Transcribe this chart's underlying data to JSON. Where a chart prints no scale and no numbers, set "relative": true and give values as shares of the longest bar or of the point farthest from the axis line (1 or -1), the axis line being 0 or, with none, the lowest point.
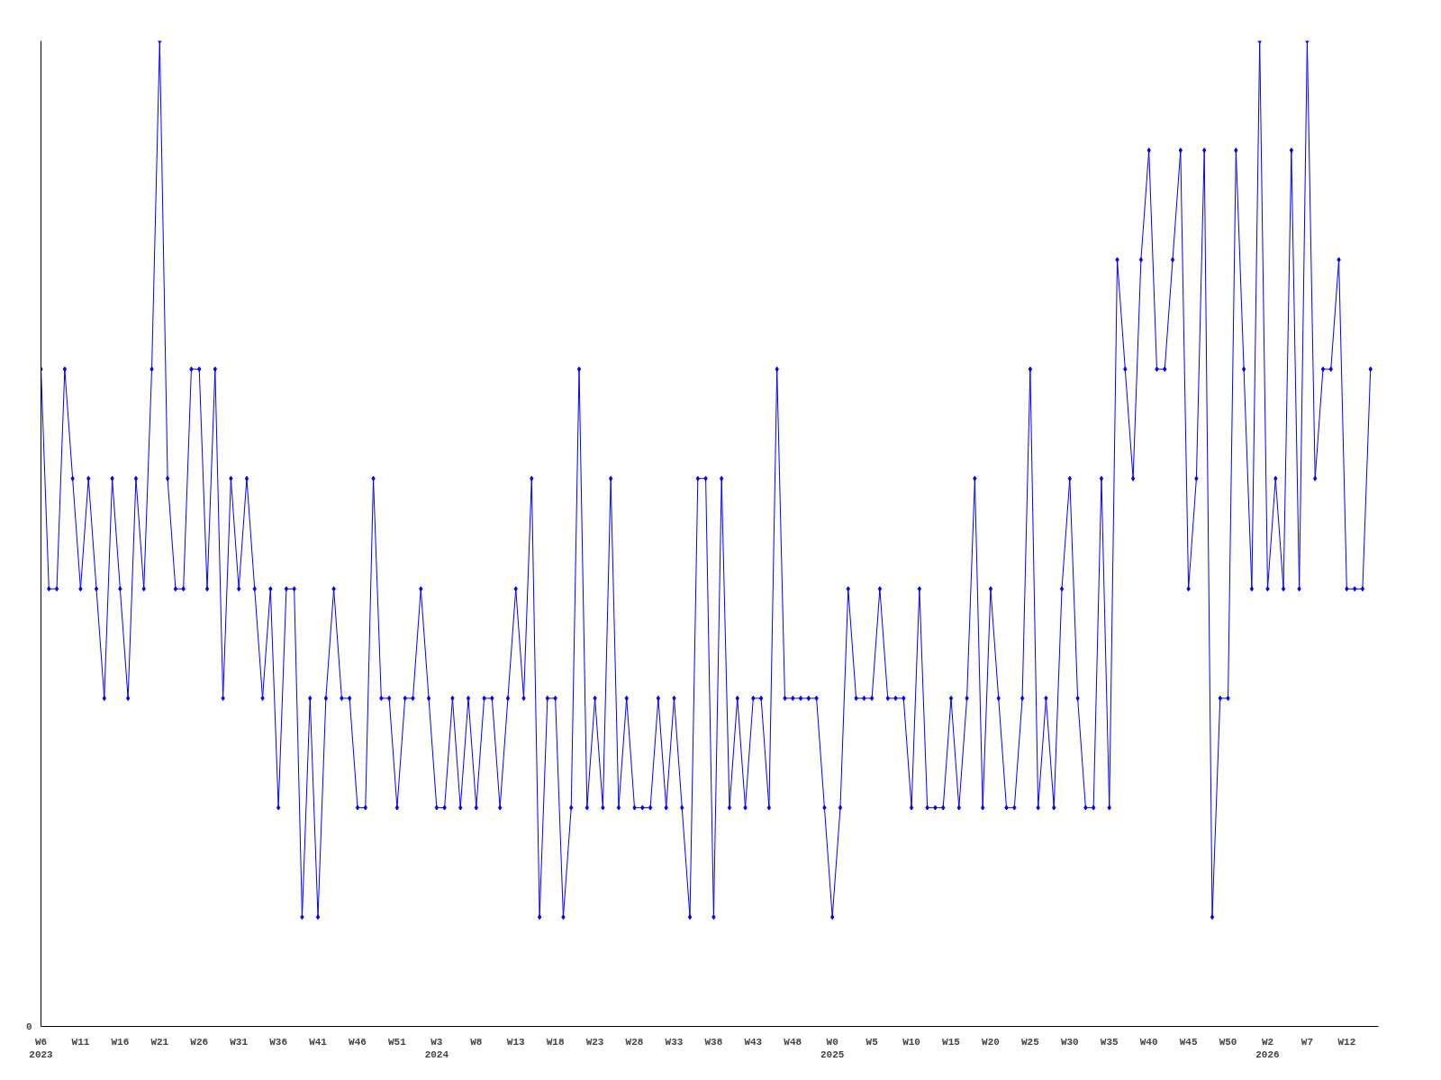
{
  "chart_data": {
    "type": "line",
    "relative": true,
    "marker": "diamond",
    "line_style": "solid",
    "categories": [
      "W6\n2023",
      null,
      null,
      null,
      null,
      "W11",
      null,
      null,
      null,
      null,
      "W16",
      null,
      null,
      null,
      null,
      "W21",
      null,
      null,
      null,
      null,
      "W26",
      null,
      null,
      null,
      null,
      "W31",
      null,
      null,
      null,
      null,
      "W36",
      null,
      null,
      null,
      null,
      "W41",
      null,
      null,
      null,
      null,
      "W46",
      null,
      null,
      null,
      null,
      "W51",
      null,
      null,
      null,
      null,
      "W3\n2024",
      null,
      null,
      null,
      null,
      "W8",
      null,
      null,
      null,
      null,
      "W13",
      null,
      null,
      null,
      null,
      "W18",
      null,
      null,
      null,
      null,
      "W23",
      null,
      null,
      null,
      null,
      "W28",
      null,
      null,
      null,
      null,
      "W33",
      null,
      null,
      null,
      null,
      "W38",
      null,
      null,
      null,
      null,
      "W43",
      null,
      null,
      null,
      null,
      "W48",
      null,
      null,
      null,
      null,
      "W0\n2025",
      null,
      null,
      null,
      null,
      "W5",
      null,
      null,
      null,
      null,
      "W10",
      null,
      null,
      null,
      null,
      "W15",
      null,
      null,
      null,
      null,
      "W20",
      null,
      null,
      null,
      null,
      "W25",
      null,
      null,
      null,
      null,
      "W30",
      null,
      null,
      null,
      null,
      "W35",
      null,
      null,
      null,
      null,
      "W40",
      null,
      null,
      null,
      null,
      "W45",
      null,
      null,
      null,
      null,
      "W50",
      null,
      null,
      null,
      null,
      "W2\n2026",
      null,
      null,
      null,
      null,
      "W7",
      null,
      null,
      null,
      null,
      "W12",
      null,
      null,
      null
    ],
    "annotations": [
      "0"
    ],
    "series": [
      {
        "color": "#0000ff",
        "values": [
          0.667,
          0.444,
          0.444,
          0.667,
          0.556,
          0.444,
          0.556,
          0.444,
          0.333,
          0.556,
          0.444,
          0.333,
          0.556,
          0.444,
          0.667,
          1,
          0.556,
          0.444,
          0.444,
          0.667,
          0.667,
          0.444,
          0.667,
          0.333,
          0.556,
          0.444,
          0.556,
          0.444,
          0.333,
          0.444,
          0.222,
          0.444,
          0.444,
          0.111,
          0.333,
          0.111,
          0.333,
          0.444,
          0.333,
          0.333,
          0.222,
          0.222,
          0.556,
          0.333,
          0.333,
          0.222,
          0.333,
          0.333,
          0.444,
          0.333,
          0.222,
          0.222,
          0.333,
          0.222,
          0.333,
          0.222,
          0.333,
          0.333,
          0.222,
          0.333,
          0.444,
          0.333,
          0.556,
          0.111,
          0.333,
          0.333,
          0.111,
          0.222,
          0.667,
          0.222,
          0.333,
          0.222,
          0.556,
          0.222,
          0.333,
          0.222,
          0.222,
          0.222,
          0.333,
          0.222,
          0.333,
          0.222,
          0.111,
          0.556,
          0.556,
          0.111,
          0.556,
          0.222,
          0.333,
          0.222,
          0.333,
          0.333,
          0.222,
          0.667,
          0.333,
          0.333,
          0.333,
          0.333,
          0.333,
          0.222,
          0.111,
          0.222,
          0.444,
          0.333,
          0.333,
          0.333,
          0.444,
          0.333,
          0.333,
          0.333,
          0.222,
          0.444,
          0.222,
          0.222,
          0.222,
          0.333,
          0.222,
          0.333,
          0.556,
          0.222,
          0.444,
          0.333,
          0.222,
          0.222,
          0.333,
          0.667,
          0.222,
          0.333,
          0.222,
          0.444,
          0.556,
          0.333,
          0.222,
          0.222,
          0.556,
          0.222,
          0.778,
          0.667,
          0.556,
          0.778,
          0.889,
          0.667,
          0.667,
          0.778,
          0.889,
          0.444,
          0.556,
          0.889,
          0.111,
          0.333,
          0.333,
          0.889,
          0.667,
          0.444,
          1,
          0.444,
          0.556,
          0.444,
          0.889,
          0.444,
          1,
          0.556,
          0.667,
          0.667,
          0.778,
          0.444,
          0.444,
          0.444,
          0.667
        ]
      }
    ]
  }
}
